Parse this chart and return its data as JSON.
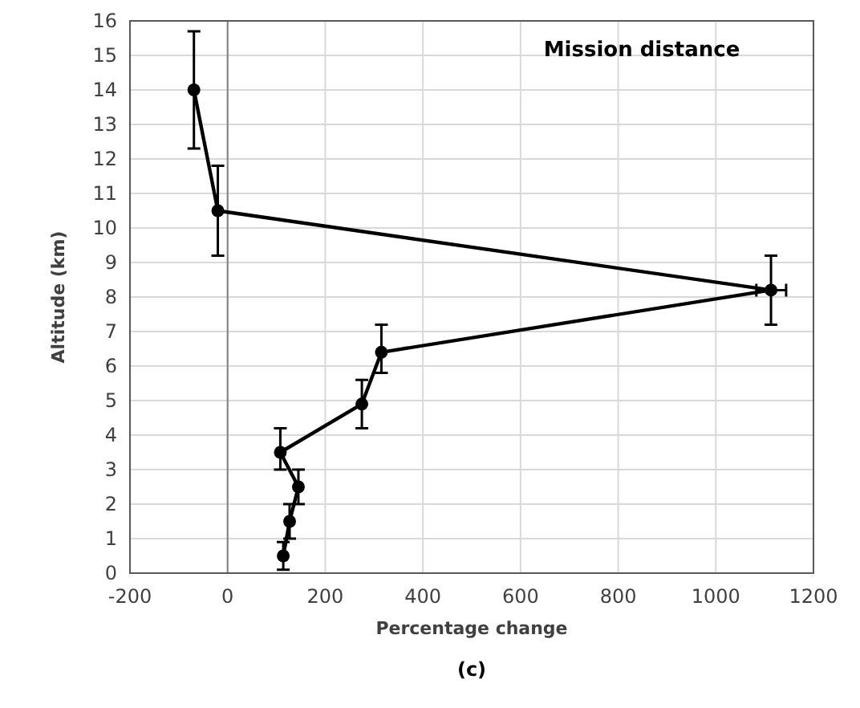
{
  "chart_data": {
    "type": "line",
    "title": "Mission distance",
    "xlabel": "Percentage change",
    "ylabel": "Altitude (km)",
    "annotations": [
      "(c)"
    ],
    "series": [
      {
        "color": "#000000",
        "x": [
          114,
          127,
          145,
          108,
          275,
          315,
          1113,
          -20,
          -69
        ],
        "values": [
          0.5,
          1.5,
          2.5,
          3.5,
          4.9,
          6.4,
          8.2,
          10.5,
          14.0
        ],
        "errors": [
          [
            0.1,
            0.9
          ],
          [
            1.0,
            2.0
          ],
          [
            2.0,
            3.0
          ],
          [
            3.0,
            4.2
          ],
          [
            4.2,
            5.6
          ],
          [
            5.8,
            7.2
          ],
          [
            7.2,
            9.2
          ],
          [
            9.2,
            11.8
          ],
          [
            12.3,
            15.7
          ]
        ],
        "xerrors": [
          null,
          null,
          null,
          null,
          null,
          null,
          [
            1083,
            1144
          ],
          null,
          null
        ]
      }
    ],
    "xlim": [
      -200,
      1200
    ],
    "xticks": [
      -200,
      0,
      200,
      400,
      600,
      800,
      1000,
      1200
    ],
    "ylim": [
      0,
      16
    ],
    "yticks": [
      0,
      1,
      2,
      3,
      4,
      5,
      6,
      7,
      8,
      9,
      10,
      11,
      12,
      13,
      14,
      15,
      16
    ],
    "ref_lines": [
      {
        "axis": "x",
        "value": 0,
        "color": "#808080"
      }
    ],
    "grid": true,
    "marker": "circle",
    "line_style": "solid"
  }
}
